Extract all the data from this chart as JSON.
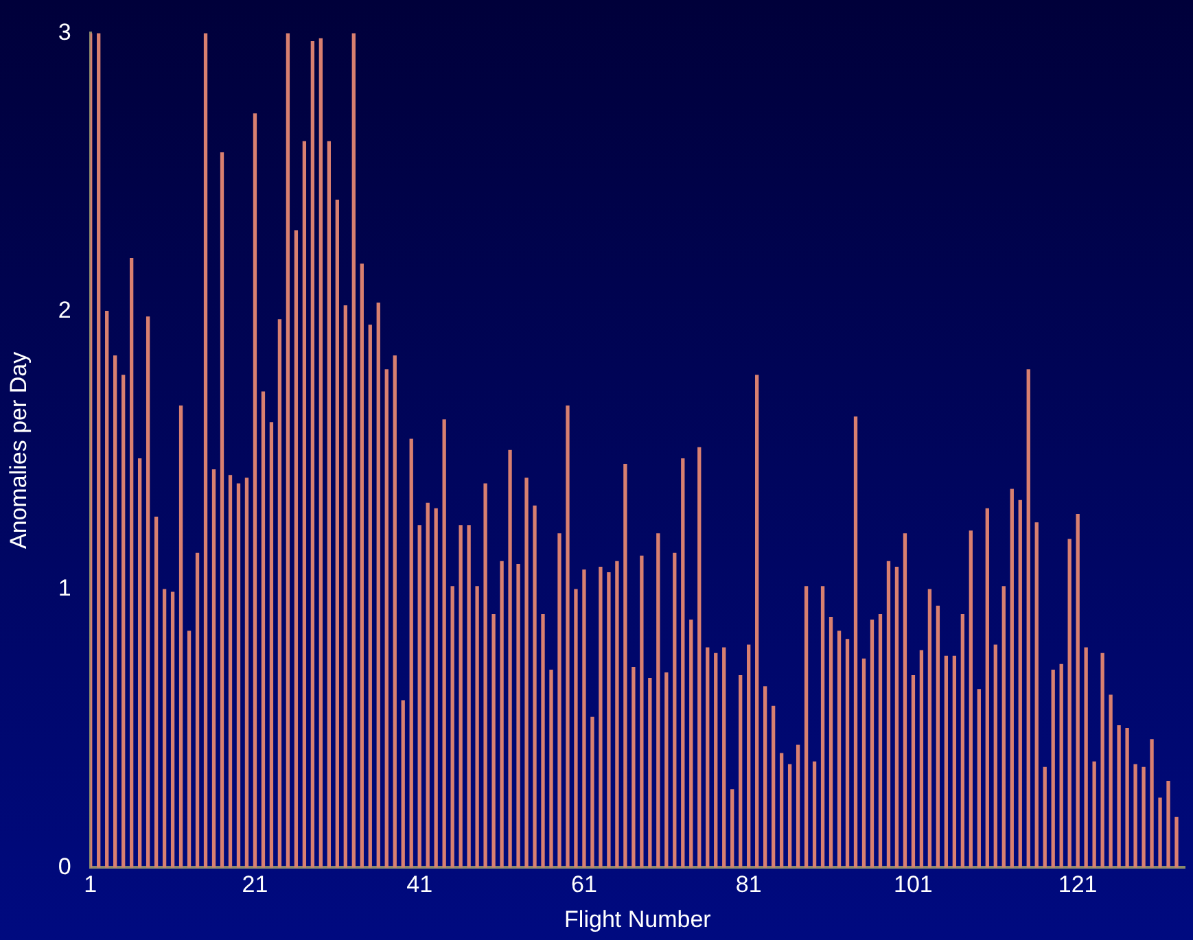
{
  "chart_data": {
    "type": "bar",
    "xlabel": "Flight Number",
    "ylabel": "Anomalies per Day",
    "x": [
      1,
      2,
      3,
      4,
      5,
      6,
      7,
      8,
      9,
      10,
      11,
      12,
      13,
      14,
      15,
      16,
      17,
      18,
      19,
      20,
      21,
      22,
      23,
      24,
      25,
      26,
      27,
      28,
      29,
      30,
      31,
      32,
      33,
      34,
      35,
      36,
      37,
      38,
      39,
      40,
      41,
      42,
      43,
      44,
      45,
      46,
      47,
      48,
      49,
      50,
      51,
      52,
      53,
      54,
      55,
      56,
      57,
      58,
      59,
      60,
      61,
      62,
      63,
      64,
      65,
      66,
      67,
      68,
      69,
      70,
      71,
      72,
      73,
      74,
      75,
      76,
      77,
      78,
      79,
      80,
      81,
      82,
      83,
      84,
      85,
      86,
      87,
      88,
      89,
      90,
      91,
      92,
      93,
      94,
      95,
      96,
      97,
      98,
      99,
      100,
      101,
      102,
      103,
      104,
      105,
      106,
      107,
      108,
      109,
      110,
      111,
      112,
      113,
      114,
      115,
      116,
      117,
      118,
      119,
      120,
      121,
      122,
      123,
      124,
      125,
      126,
      127,
      128,
      129,
      130,
      131,
      132,
      133
    ],
    "values": [
      3.0,
      3.0,
      2.0,
      1.84,
      1.77,
      2.19,
      1.47,
      1.98,
      1.26,
      1.0,
      0.99,
      1.66,
      0.85,
      1.13,
      3.0,
      1.43,
      2.57,
      1.41,
      1.38,
      1.4,
      2.71,
      1.71,
      1.6,
      1.97,
      3.0,
      2.29,
      2.61,
      2.97,
      2.98,
      2.61,
      2.4,
      2.02,
      3.0,
      2.17,
      1.95,
      2.03,
      1.79,
      1.84,
      0.6,
      1.54,
      1.23,
      1.31,
      1.29,
      1.61,
      1.01,
      1.23,
      1.23,
      1.01,
      1.38,
      0.91,
      1.1,
      1.5,
      1.09,
      1.4,
      1.3,
      0.91,
      0.71,
      1.2,
      1.66,
      1.0,
      1.07,
      0.54,
      1.08,
      1.06,
      1.1,
      1.45,
      0.72,
      1.12,
      0.68,
      1.2,
      0.7,
      1.13,
      1.47,
      0.89,
      1.51,
      0.79,
      0.77,
      0.79,
      0.28,
      0.69,
      0.8,
      1.77,
      0.65,
      0.58,
      0.41,
      0.37,
      0.44,
      1.01,
      0.38,
      1.01,
      0.9,
      0.85,
      0.82,
      1.62,
      0.75,
      0.89,
      0.91,
      1.1,
      1.08,
      1.2,
      0.69,
      0.78,
      1.0,
      0.94,
      0.76,
      0.76,
      0.91,
      1.21,
      0.64,
      1.29,
      0.8,
      1.01,
      1.36,
      1.32,
      1.79,
      1.24,
      0.36,
      0.71,
      0.73,
      1.18,
      1.27,
      0.79,
      0.38,
      0.77,
      0.62,
      0.51,
      0.5,
      0.37,
      0.36,
      0.46,
      0.25,
      0.31,
      0.18
    ],
    "color": "#d98070",
    "xlim": [
      1,
      134
    ],
    "xticks": [
      1,
      21,
      41,
      61,
      81,
      101,
      121
    ],
    "ylim": [
      0,
      3
    ],
    "yticks": [
      0,
      1,
      2,
      3
    ],
    "grid": false,
    "legend": false
  }
}
